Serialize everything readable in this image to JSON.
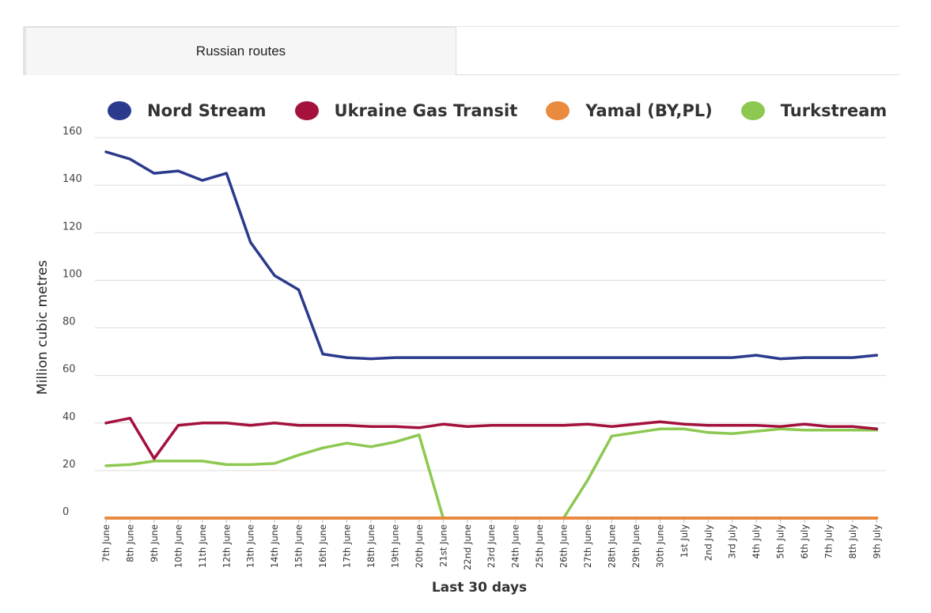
{
  "tabs": [
    {
      "label": "Russian routes"
    }
  ],
  "chart_data": {
    "type": "line",
    "ylabel": "Million cubic metres",
    "xlabel": "Last 30 days",
    "ylim": [
      0,
      160
    ],
    "yticks": [
      0,
      20,
      40,
      60,
      80,
      100,
      120,
      140,
      160
    ],
    "grid": true,
    "legend_position": "top",
    "categories": [
      "7th June",
      "8th June",
      "9th June",
      "10th June",
      "11th June",
      "12th June",
      "13th June",
      "14th June",
      "15th June",
      "16th June",
      "17th June",
      "18th June",
      "19th June",
      "20th June",
      "21st June",
      "22nd June",
      "23rd June",
      "24th June",
      "25th June",
      "26th June",
      "27th June",
      "28th June",
      "29th June",
      "30th June",
      "1st July",
      "2nd July",
      "3rd July",
      "4th July",
      "5th July",
      "6th July",
      "7th July",
      "8th July",
      "9th July"
    ],
    "series": [
      {
        "name": "Nord Stream",
        "color": "#2b3a8c",
        "values": [
          154,
          151,
          145,
          146,
          142,
          145,
          116,
          102,
          96,
          69,
          67.5,
          67,
          67.5,
          67.5,
          67.5,
          67.5,
          67.5,
          67.5,
          67.5,
          67.5,
          67.5,
          67.5,
          67.5,
          67.5,
          67.5,
          67.5,
          67.5,
          68.5,
          67,
          67.5,
          67.5,
          67.5,
          68.5
        ]
      },
      {
        "name": "Ukraine Gas Transit",
        "color": "#a3113c",
        "values": [
          40,
          42,
          25,
          39,
          40,
          40,
          39,
          40,
          39,
          39,
          39,
          38.5,
          38.5,
          38,
          39.5,
          38.5,
          39,
          39,
          39,
          39,
          39.5,
          38.5,
          39.5,
          40.5,
          39.5,
          39,
          39,
          39,
          38.5,
          39.5,
          38.5,
          38.5,
          37.5
        ]
      },
      {
        "name": "Yamal (BY,PL)",
        "color": "#e98a3e",
        "values": [
          0,
          0,
          0,
          0,
          0,
          0,
          0,
          0,
          0,
          0,
          0,
          0,
          0,
          0,
          0,
          0,
          0,
          0,
          0,
          0,
          0,
          0,
          0,
          0,
          0,
          0,
          0,
          0,
          0,
          0,
          0,
          0,
          0
        ]
      },
      {
        "name": "Turkstream",
        "color": "#8dc850",
        "values": [
          22,
          22.5,
          24,
          24,
          24,
          22.5,
          22.5,
          23,
          26.5,
          29.5,
          31.5,
          30,
          32,
          35,
          0,
          0,
          0,
          0,
          0,
          0,
          16,
          34.5,
          36,
          37.5,
          37.5,
          36,
          35.5,
          36.5,
          37.5,
          37,
          37,
          37,
          37
        ]
      }
    ]
  }
}
